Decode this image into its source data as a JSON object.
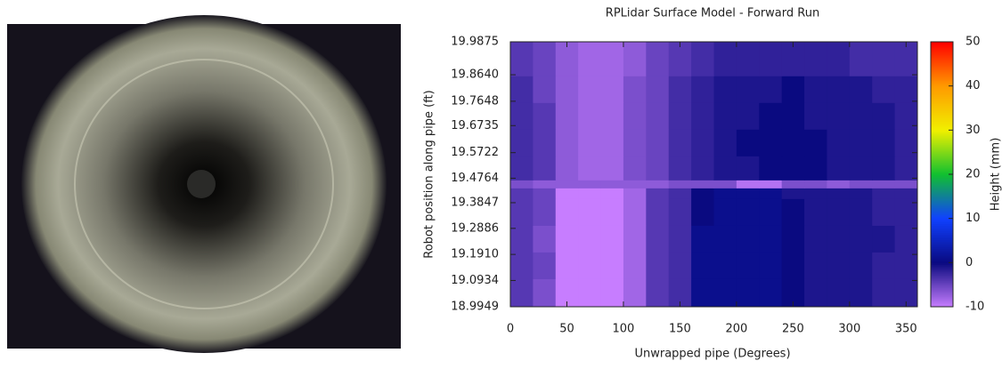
{
  "chart_data": {
    "type": "heatmap",
    "title": "RPLidar Surface Model - Forward Run",
    "x_label": "Unwrapped pipe (Degrees)",
    "y_label": "Robot position along pipe (ft)",
    "colorbar_label": "Height (mm)",
    "xlim": [
      0,
      360
    ],
    "xticks": [
      0,
      50,
      100,
      150,
      200,
      250,
      300,
      350
    ],
    "ylim": [
      18.9949,
      19.9875
    ],
    "yticks": [
      18.9949,
      19.0934,
      {
        "value": 19.191,
        "label": "19.1910"
      },
      19.2886,
      19.3847,
      19.4764,
      19.5722,
      19.6735,
      19.7648,
      {
        "value": 19.864,
        "label": "19.8640"
      },
      19.9875
    ],
    "zlim": [
      -10,
      50
    ],
    "zticks": [
      -10,
      0,
      10,
      20,
      30,
      40,
      50
    ],
    "colorscale": [
      "#c77dff",
      "#0a0a80",
      "#1040ff",
      "#10c030",
      "#f0f000",
      "#ff9a00",
      "#ff0000"
    ],
    "xbins": [
      0,
      20,
      40,
      60,
      80,
      100,
      120,
      140,
      160,
      180,
      200,
      220,
      240,
      260,
      280,
      300,
      320,
      340,
      360
    ],
    "ybins": [
      18.9949,
      19.1,
      19.2,
      19.3,
      19.4,
      19.44,
      19.47,
      19.56,
      19.66,
      19.76,
      19.86,
      19.9875
    ],
    "z": [
      [
        -4,
        -6,
        -10,
        -10,
        -10,
        -8,
        -4,
        -3,
        1,
        1,
        1,
        1,
        0,
        -1,
        -1,
        -1,
        -2,
        -2
      ],
      [
        -4,
        -5,
        -10,
        -10,
        -10,
        -8,
        -4,
        -3,
        1,
        1,
        1,
        1,
        0,
        -1,
        -1,
        -1,
        -2,
        -2
      ],
      [
        -4,
        -6,
        -10,
        -10,
        -10,
        -8,
        -4,
        -3,
        1,
        1,
        1,
        1,
        0,
        -1,
        -1,
        -1,
        -1,
        -2
      ],
      [
        -4,
        -5,
        -10,
        -10,
        -10,
        -8,
        -4,
        -3,
        0,
        1,
        1,
        1,
        0,
        -1,
        -1,
        -1,
        -2,
        -2
      ],
      [
        -4,
        -5,
        -10,
        -10,
        -10,
        -8,
        -4,
        -3,
        0,
        1,
        1,
        1,
        -1,
        -1,
        -1,
        -1,
        -2,
        -2
      ],
      [
        -6,
        -7,
        -7,
        -7,
        -7,
        -7,
        -7,
        -6,
        -6,
        -6,
        -9,
        -9,
        -6,
        -6,
        -7,
        -6,
        -6,
        -6
      ],
      [
        -3,
        -4,
        -7,
        -8,
        -8,
        -6,
        -5,
        -3,
        -2,
        -1,
        -1,
        0,
        0,
        0,
        -1,
        -1,
        -1,
        -2
      ],
      [
        -3,
        -4,
        -7,
        -8,
        -8,
        -6,
        -5,
        -3,
        -2,
        -1,
        0,
        0,
        0,
        0,
        -1,
        -1,
        -1,
        -2
      ],
      [
        -3,
        -4,
        -7,
        -8,
        -8,
        -6,
        -5,
        -3,
        -2,
        -1,
        -1,
        0,
        0,
        -1,
        -1,
        -1,
        -1,
        -2
      ],
      [
        -3,
        -5,
        -7,
        -8,
        -8,
        -6,
        -5,
        -3,
        -2,
        -1,
        -1,
        -1,
        0,
        -1,
        -1,
        -1,
        -2,
        -2
      ],
      [
        -4,
        -5,
        -7,
        -8,
        -8,
        -7,
        -5,
        -4,
        -3,
        -2,
        -2,
        -2,
        -2,
        -2,
        -2,
        -3,
        -3,
        -3
      ]
    ]
  }
}
